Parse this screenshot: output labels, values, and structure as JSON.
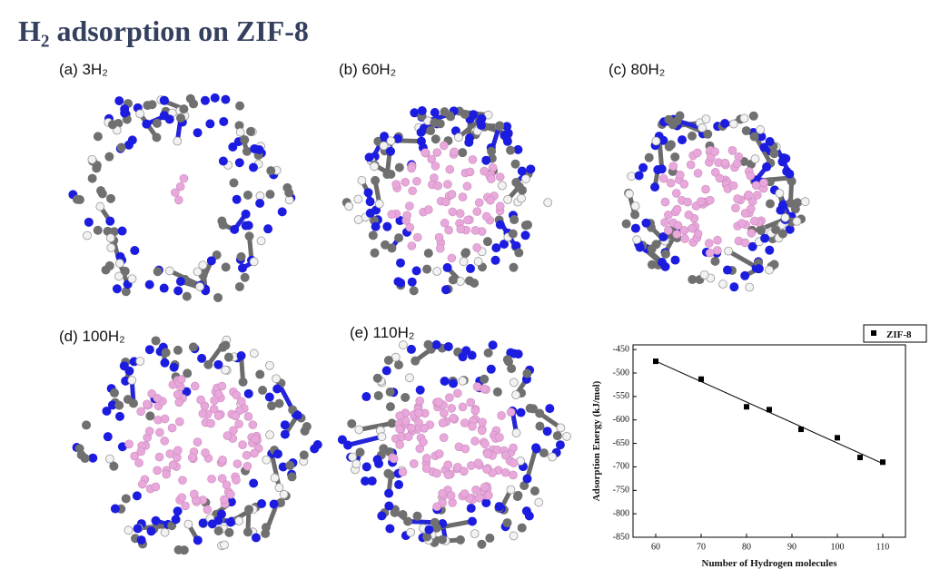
{
  "title": "H₂ adsorption on ZIF-8",
  "panels": [
    "(a) 3H₂",
    "(b) 60H₂",
    "(c) 80H₂",
    "(d) 100H₂",
    "(e) 110H₂"
  ],
  "chart_data": {
    "type": "scatter",
    "x_label": "Number of Hydrogen molecules",
    "y_label": "Adsorption Energy (kJ/mol)",
    "series": [
      {
        "name": "ZIF-8",
        "color": "#000000",
        "x": [
          60,
          70,
          80,
          85,
          92,
          100,
          105,
          110
        ],
        "values": [
          -475,
          -513,
          -572,
          -578,
          -620,
          -638,
          -680,
          -690
        ]
      }
    ],
    "xlim": [
      55,
      115
    ],
    "xticks": [
      60,
      70,
      80,
      90,
      100,
      110
    ],
    "ylim": [
      -850,
      -440
    ],
    "yticks": [
      -450,
      -500,
      -550,
      -600,
      -650,
      -700,
      -750,
      -800,
      -850
    ],
    "fit_line": true,
    "legend": "top-right"
  }
}
